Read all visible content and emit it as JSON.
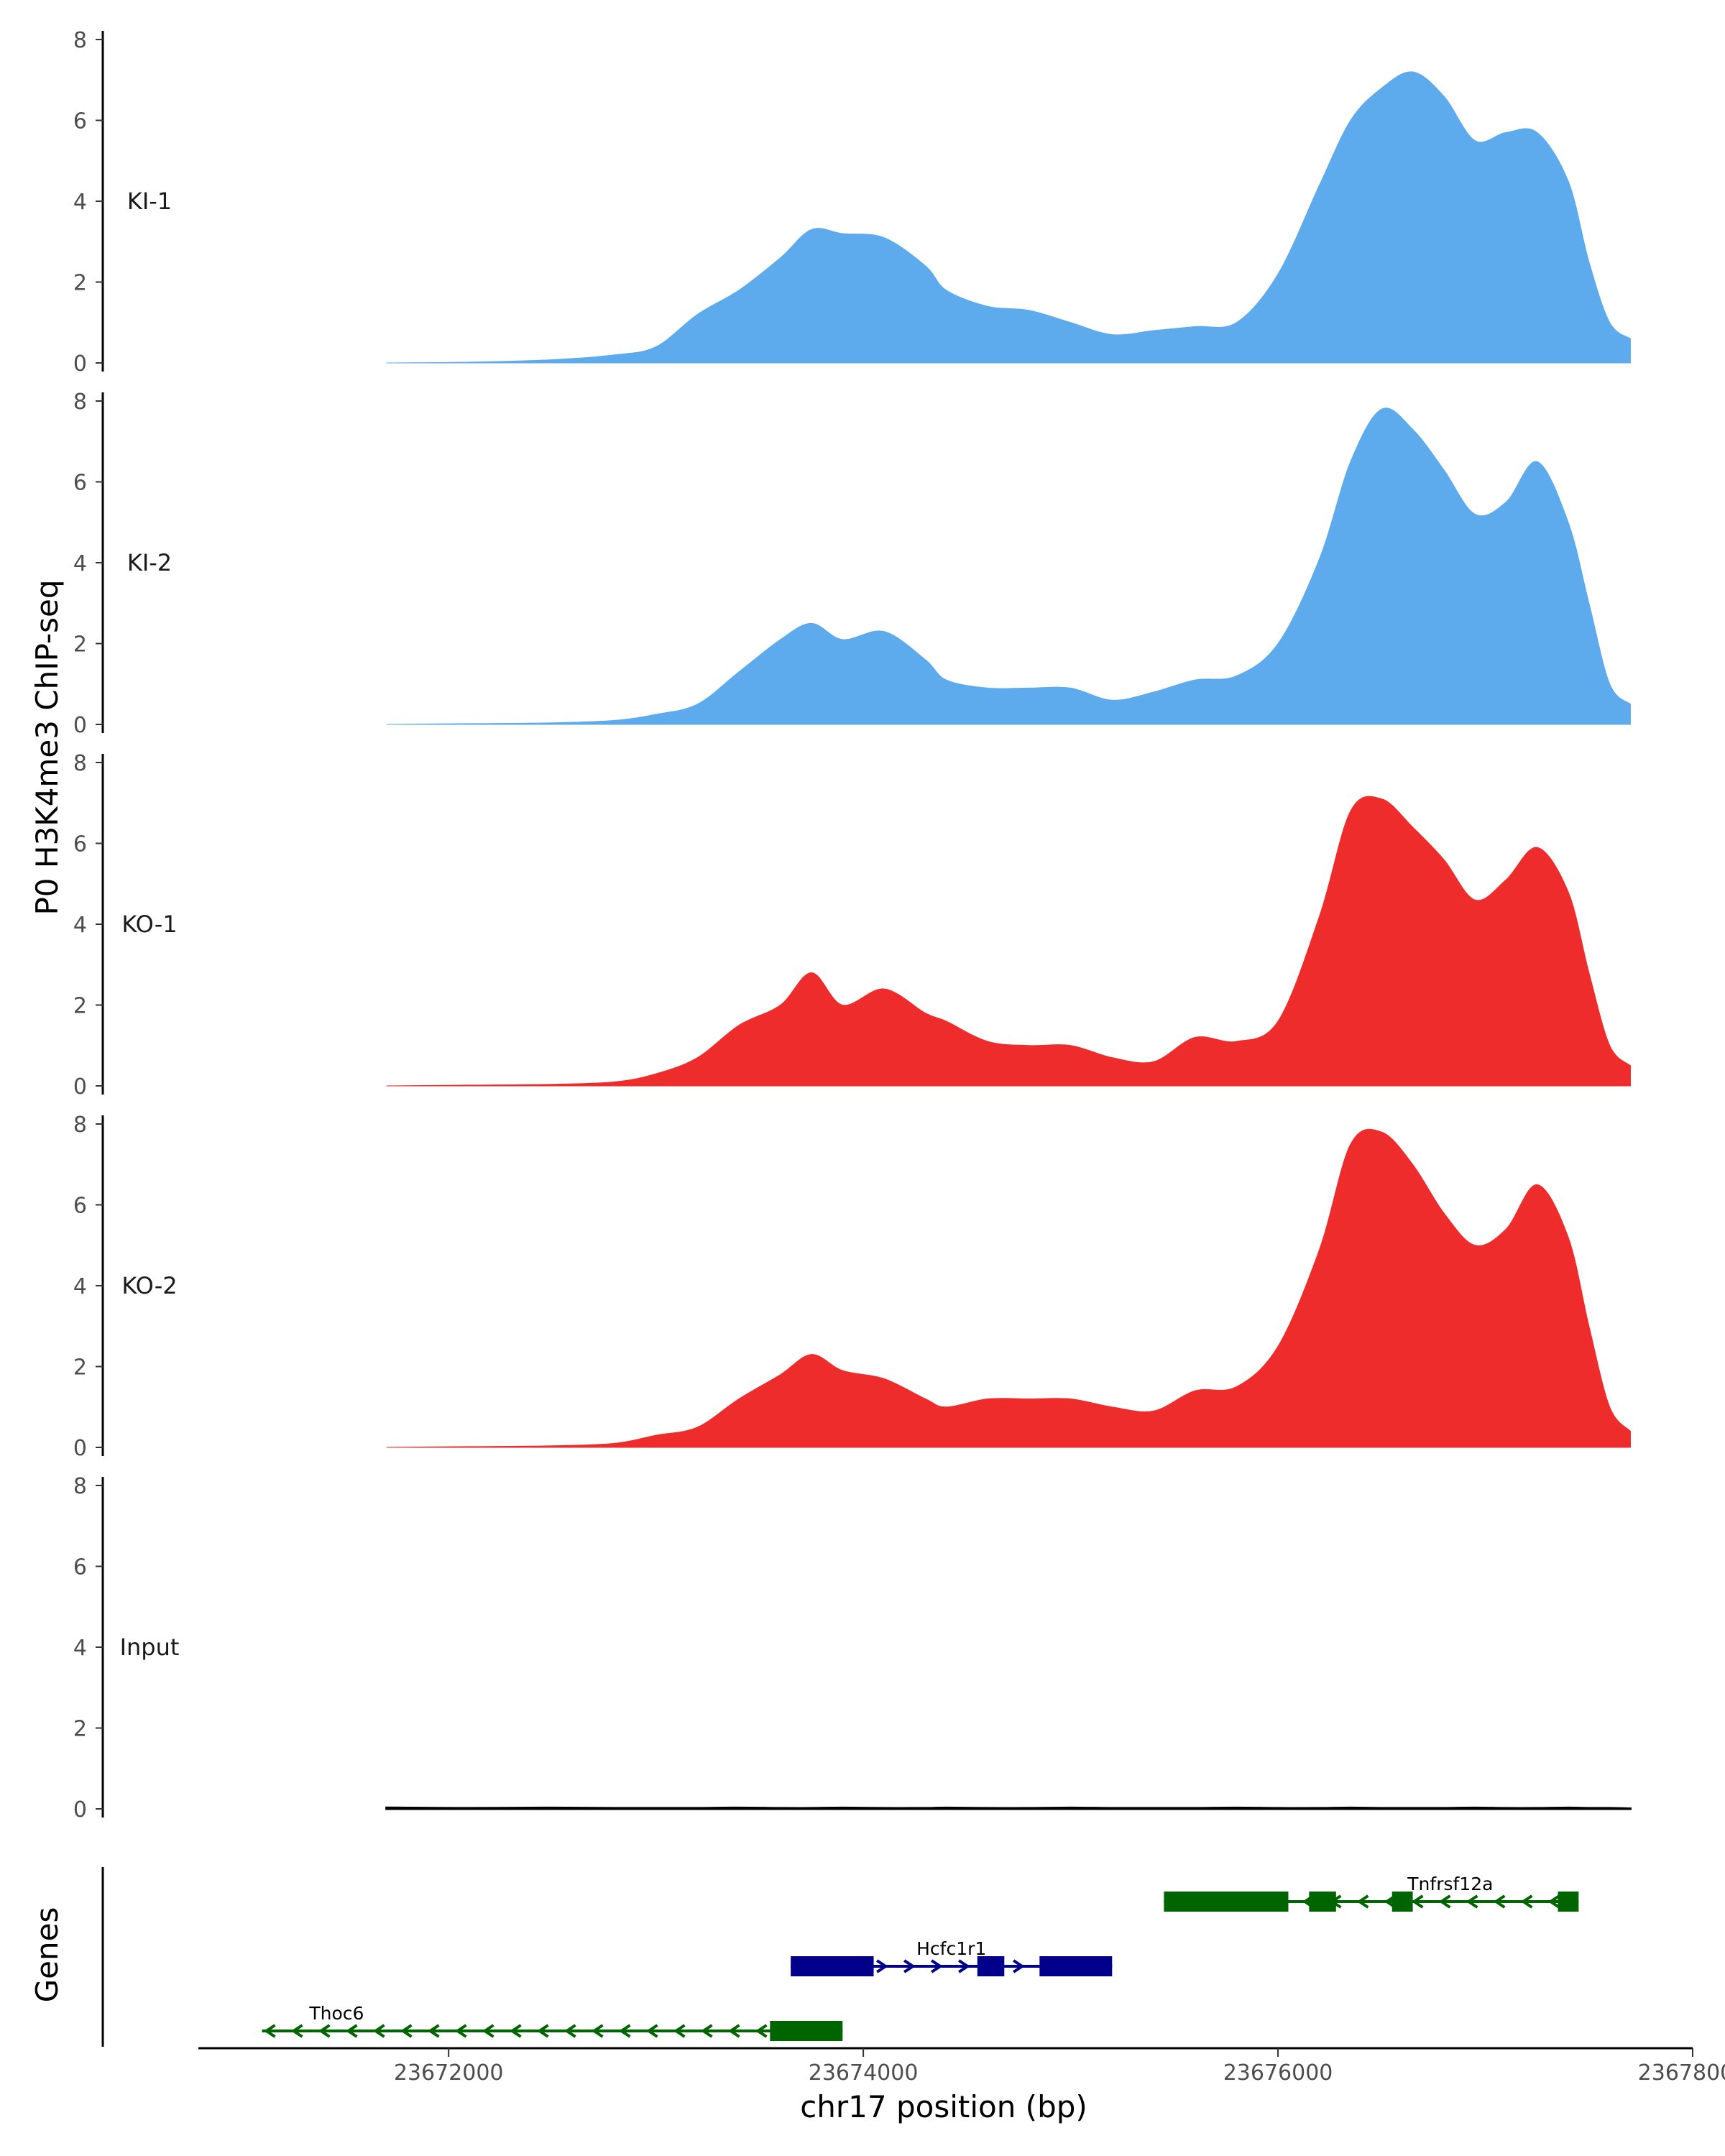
{
  "chart_data": {
    "type": "area",
    "ylabel": "P0 H3K4me3 ChIP-seq",
    "xlabel": "chr17 position (bp)",
    "xlim": [
      23670800,
      23678000
    ],
    "ylim": [
      0,
      8
    ],
    "y_ticks": [
      0,
      2,
      4,
      6,
      8
    ],
    "x_ticks": [
      23672000,
      23674000,
      23676000,
      23678000
    ],
    "x_tick_labels": [
      "23672000",
      "23674000",
      "23676000",
      "23678000"
    ],
    "x": [
      23671700,
      23672100,
      23672500,
      23672800,
      23673000,
      23673200,
      23673400,
      23673600,
      23673750,
      23673900,
      23674100,
      23674300,
      23674400,
      23674600,
      23674800,
      23675000,
      23675200,
      23675400,
      23675600,
      23675800,
      23676000,
      23676200,
      23676350,
      23676500,
      23676650,
      23676800,
      23676950,
      23677100,
      23677250,
      23677400,
      23677500,
      23677600,
      23677700
    ],
    "tracks": [
      {
        "name": "KI-1",
        "color": "#5daaed",
        "values": [
          0,
          0.02,
          0.08,
          0.2,
          0.4,
          1.2,
          1.8,
          2.6,
          3.3,
          3.2,
          3.1,
          2.4,
          1.8,
          1.4,
          1.3,
          1.0,
          0.7,
          0.8,
          0.9,
          1.0,
          2.2,
          4.4,
          6.0,
          6.8,
          7.2,
          6.6,
          5.5,
          5.7,
          5.7,
          4.5,
          2.5,
          1.0,
          0.6
        ]
      },
      {
        "name": "KI-2",
        "color": "#5daaed",
        "values": [
          0,
          0.02,
          0.04,
          0.1,
          0.25,
          0.5,
          1.3,
          2.1,
          2.5,
          2.1,
          2.3,
          1.6,
          1.1,
          0.9,
          0.9,
          0.9,
          0.6,
          0.8,
          1.1,
          1.2,
          2.0,
          4.1,
          6.5,
          7.8,
          7.3,
          6.3,
          5.2,
          5.5,
          6.5,
          5.0,
          3.0,
          1.0,
          0.5
        ]
      },
      {
        "name": "KO-1",
        "color": "#ee2c2c",
        "values": [
          0,
          0.02,
          0.04,
          0.1,
          0.3,
          0.7,
          1.5,
          2.0,
          2.8,
          2.0,
          2.4,
          1.8,
          1.6,
          1.1,
          1.0,
          1.0,
          0.7,
          0.6,
          1.2,
          1.1,
          1.6,
          4.2,
          6.8,
          7.1,
          6.4,
          5.6,
          4.6,
          5.1,
          5.9,
          4.8,
          2.8,
          1.0,
          0.5
        ]
      },
      {
        "name": "KO-2",
        "color": "#ee2c2c",
        "values": [
          0,
          0.02,
          0.04,
          0.1,
          0.3,
          0.5,
          1.2,
          1.8,
          2.3,
          1.9,
          1.7,
          1.2,
          1.0,
          1.2,
          1.2,
          1.2,
          1.0,
          0.9,
          1.4,
          1.5,
          2.5,
          4.9,
          7.5,
          7.8,
          7.0,
          5.8,
          5.0,
          5.4,
          6.5,
          5.2,
          3.0,
          1.0,
          0.4
        ]
      },
      {
        "name": "Input",
        "color": "#000000",
        "values": [
          0.03,
          0.02,
          0.03,
          0.02,
          0.02,
          0.02,
          0.03,
          0.02,
          0.02,
          0.03,
          0.02,
          0.02,
          0.03,
          0.02,
          0.02,
          0.03,
          0.02,
          0.02,
          0.02,
          0.03,
          0.02,
          0.02,
          0.03,
          0.02,
          0.02,
          0.02,
          0.03,
          0.02,
          0.02,
          0.03,
          0.02,
          0.02,
          0.01
        ]
      }
    ],
    "genes_title": "Genes",
    "genes": [
      {
        "name": "Tnfrsf12a",
        "strand": "-",
        "color": "#006400",
        "row": 0,
        "start": 23675450,
        "end": 23677450,
        "exons": [
          [
            23675450,
            23676050
          ],
          [
            23676150,
            23676280
          ],
          [
            23676550,
            23676650
          ],
          [
            23677350,
            23677450
          ]
        ]
      },
      {
        "name": "Hcfc1r1",
        "strand": "+",
        "color": "#00008b",
        "row": 1,
        "start": 23673650,
        "end": 23675200,
        "exons": [
          [
            23673650,
            23674050
          ],
          [
            23674550,
            23674680
          ],
          [
            23674850,
            23675200
          ]
        ]
      },
      {
        "name": "Thoc6",
        "strand": "-",
        "color": "#006400",
        "row": 2,
        "start": 23671100,
        "end": 23673900,
        "exons": [
          [
            23673550,
            23673900
          ]
        ]
      }
    ]
  }
}
